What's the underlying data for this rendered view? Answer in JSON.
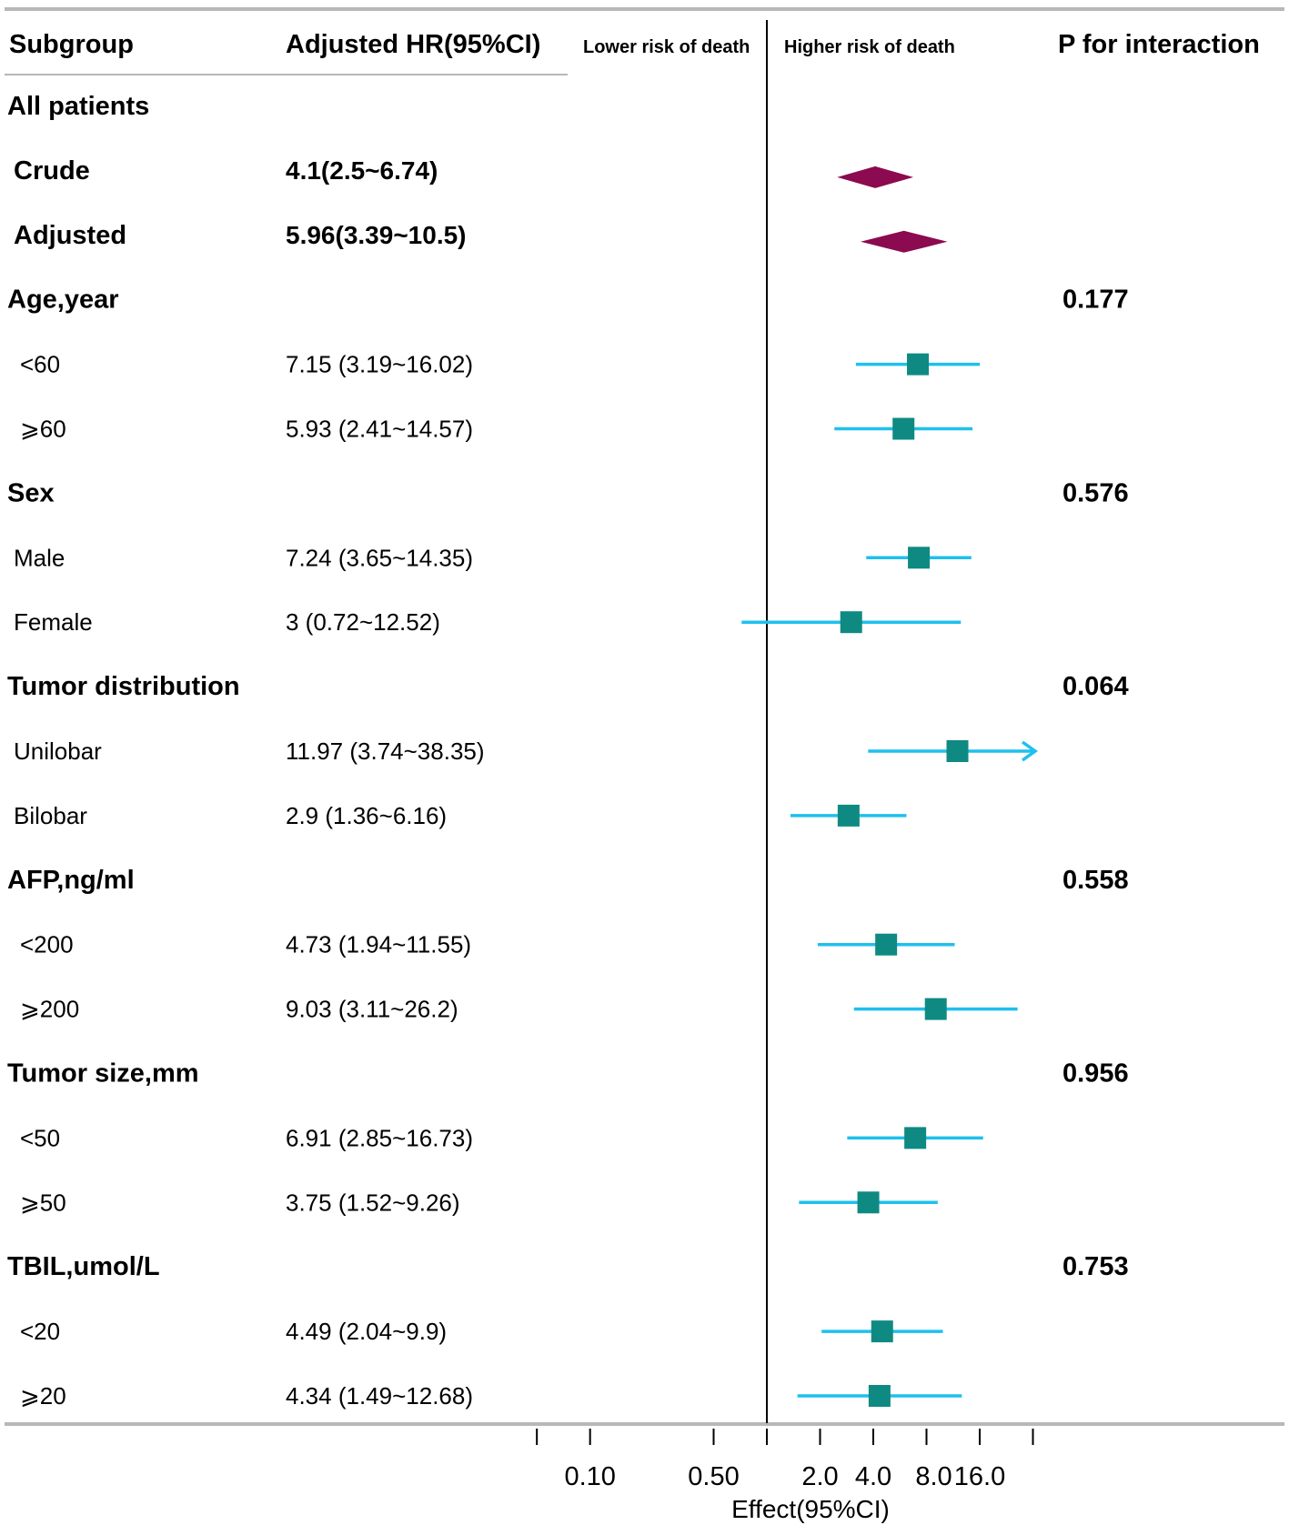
{
  "chart_data": {
    "type": "forest",
    "header": {
      "subgroup": "Subgroup",
      "hr": "Adjusted HR(95%CI)",
      "lower": "Lower risk of death",
      "higher": "Higher risk of death",
      "p": "P for interaction"
    },
    "x_axis": {
      "label": "Effect(95%CI)",
      "scale": "log",
      "reference": 1,
      "ticks": [
        0.05,
        0.1,
        0.5,
        1,
        2,
        4,
        8,
        16,
        32
      ],
      "tick_labels": [
        "0.10",
        "0.50",
        "2.0",
        "4.0",
        "8.0",
        "16.0"
      ]
    },
    "rows": [
      {
        "kind": "group",
        "label": "All patients"
      },
      {
        "kind": "overall",
        "label": "Crude",
        "hr_text": "4.1(2.5~6.74)",
        "est": 4.1,
        "lo": 2.5,
        "hi": 6.74
      },
      {
        "kind": "overall",
        "label": "Adjusted",
        "hr_text": "5.96(3.39~10.5)",
        "est": 5.96,
        "lo": 3.39,
        "hi": 10.5
      },
      {
        "kind": "group",
        "label": "Age,year",
        "p": "0.177"
      },
      {
        "kind": "sub",
        "label": "<60",
        "hr_text": "7.15 (3.19~16.02)",
        "est": 7.15,
        "lo": 3.19,
        "hi": 16.02
      },
      {
        "kind": "sub",
        "label": "⩾60",
        "hr_text": "5.93 (2.41~14.57)",
        "est": 5.93,
        "lo": 2.41,
        "hi": 14.57
      },
      {
        "kind": "group",
        "label": "Sex",
        "p": "0.576"
      },
      {
        "kind": "sub",
        "label": "Male",
        "hr_text": "7.24 (3.65~14.35)",
        "est": 7.24,
        "lo": 3.65,
        "hi": 14.35
      },
      {
        "kind": "sub",
        "label": "Female",
        "hr_text": "3 (0.72~12.52)",
        "est": 3,
        "lo": 0.72,
        "hi": 12.52
      },
      {
        "kind": "group",
        "label": "Tumor distribution",
        "p": "0.064"
      },
      {
        "kind": "sub",
        "label": "Unilobar",
        "hr_text": "11.97 (3.74~38.35)",
        "est": 11.97,
        "lo": 3.74,
        "hi": 38.35,
        "arrow": true
      },
      {
        "kind": "sub",
        "label": "Bilobar",
        "hr_text": "2.9 (1.36~6.16)",
        "est": 2.9,
        "lo": 1.36,
        "hi": 6.16
      },
      {
        "kind": "group",
        "label": "AFP,ng/ml",
        "p": "0.558"
      },
      {
        "kind": "sub",
        "label": "<200",
        "hr_text": "4.73 (1.94~11.55)",
        "est": 4.73,
        "lo": 1.94,
        "hi": 11.55
      },
      {
        "kind": "sub",
        "label": "⩾200",
        "hr_text": "9.03 (3.11~26.2)",
        "est": 9.03,
        "lo": 3.11,
        "hi": 26.2
      },
      {
        "kind": "group",
        "label": "Tumor size,mm",
        "p": "0.956"
      },
      {
        "kind": "sub",
        "label": "<50",
        "hr_text": "6.91 (2.85~16.73)",
        "est": 6.91,
        "lo": 2.85,
        "hi": 16.73
      },
      {
        "kind": "sub",
        "label": "⩾50",
        "hr_text": "3.75 (1.52~9.26)",
        "est": 3.75,
        "lo": 1.52,
        "hi": 9.26
      },
      {
        "kind": "group",
        "label": "TBIL,umol/L",
        "p": "0.753"
      },
      {
        "kind": "sub",
        "label": "<20",
        "hr_text": "4.49 (2.04~9.9)",
        "est": 4.49,
        "lo": 2.04,
        "hi": 9.9
      },
      {
        "kind": "sub",
        "label": "⩾20",
        "hr_text": "4.34 (1.49~12.68)",
        "est": 4.34,
        "lo": 1.49,
        "hi": 12.68
      }
    ],
    "colors": {
      "diamond": "#8b0a50",
      "square": "#0f8a82",
      "ci_line": "#1ec0ee",
      "rule": "#b8b8b8",
      "text": "#000000"
    }
  }
}
